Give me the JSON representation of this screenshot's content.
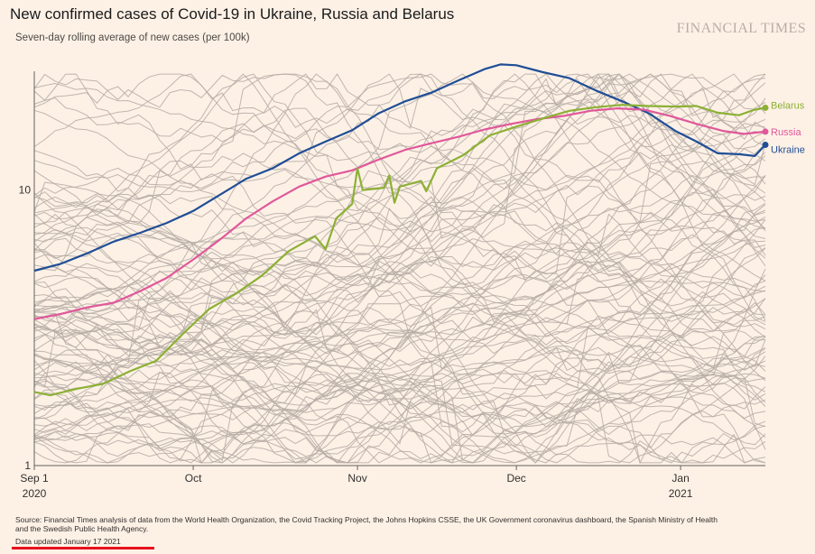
{
  "header": {
    "title": "New confirmed cases of Covid-19 in Ukraine, Russia and Belarus",
    "subtitle": "Seven-day rolling average of new cases (per 100k)",
    "brand": "FINANCIAL TIMES"
  },
  "footer": {
    "source": "Source: Financial Times analysis of data from the World Health Organization, the Covid Tracking Project, the Johns Hopkins CSSE, the UK Government coronavirus dashboard, the Spanish Ministry of Health and the Swedish Public Health Agency.",
    "updated": "Data updated January 17 2021"
  },
  "colors": {
    "background": "#fdf1e6",
    "other_countries": "#b5aca5",
    "ukraine": "#1f4e96",
    "russia": "#e0589a",
    "belarus": "#8cb034",
    "underline": "#e8111d"
  },
  "chart_data": {
    "type": "line",
    "y_scale": "log",
    "ylim": [
      1,
      27
    ],
    "y_ticks": [
      1,
      10
    ],
    "y_tick_labels": [
      "1",
      "10"
    ],
    "xlim": [
      "2020-09-01",
      "2021-01-17"
    ],
    "x_ticks": [
      {
        "date": "2020-09-01",
        "label": "Sep 1",
        "sublabel": "2020"
      },
      {
        "date": "2020-10-01",
        "label": "Oct",
        "sublabel": ""
      },
      {
        "date": "2020-11-01",
        "label": "Nov",
        "sublabel": ""
      },
      {
        "date": "2020-12-01",
        "label": "Dec",
        "sublabel": ""
      },
      {
        "date": "2021-01-01",
        "label": "Jan",
        "sublabel": "2021"
      }
    ],
    "grid": false,
    "legend": "direct labels at right end of lines",
    "series": [
      {
        "name": "Ukraine",
        "color": "#1f4e96",
        "points": [
          [
            "2020-09-01",
            5.1
          ],
          [
            "2020-09-06",
            5.4
          ],
          [
            "2020-09-11",
            5.9
          ],
          [
            "2020-09-16",
            6.5
          ],
          [
            "2020-09-21",
            7.0
          ],
          [
            "2020-09-26",
            7.6
          ],
          [
            "2020-10-01",
            8.4
          ],
          [
            "2020-10-06",
            9.6
          ],
          [
            "2020-10-11",
            11.0
          ],
          [
            "2020-10-16",
            12.0
          ],
          [
            "2020-10-21",
            13.6
          ],
          [
            "2020-10-26",
            15.0
          ],
          [
            "2020-10-31",
            16.5
          ],
          [
            "2020-11-05",
            19.0
          ],
          [
            "2020-11-10",
            21.0
          ],
          [
            "2020-11-15",
            22.6
          ],
          [
            "2020-11-20",
            25.0
          ],
          [
            "2020-11-25",
            27.5
          ],
          [
            "2020-11-28",
            28.6
          ],
          [
            "2020-12-01",
            28.4
          ],
          [
            "2020-12-06",
            26.8
          ],
          [
            "2020-12-11",
            25.5
          ],
          [
            "2020-12-16",
            23.0
          ],
          [
            "2020-12-21",
            21.0
          ],
          [
            "2020-12-26",
            19.0
          ],
          [
            "2020-12-31",
            16.4
          ],
          [
            "2021-01-04",
            15.0
          ],
          [
            "2021-01-08",
            13.6
          ],
          [
            "2021-01-12",
            13.5
          ],
          [
            "2021-01-15",
            13.3
          ],
          [
            "2021-01-17",
            14.6
          ]
        ]
      },
      {
        "name": "Russia",
        "color": "#e0589a",
        "points": [
          [
            "2020-09-01",
            3.4
          ],
          [
            "2020-09-06",
            3.55
          ],
          [
            "2020-09-11",
            3.75
          ],
          [
            "2020-09-16",
            3.9
          ],
          [
            "2020-09-21",
            4.3
          ],
          [
            "2020-09-26",
            4.8
          ],
          [
            "2020-10-01",
            5.6
          ],
          [
            "2020-10-06",
            6.6
          ],
          [
            "2020-10-11",
            7.9
          ],
          [
            "2020-10-16",
            9.1
          ],
          [
            "2020-10-21",
            10.3
          ],
          [
            "2020-10-26",
            11.2
          ],
          [
            "2020-10-31",
            11.8
          ],
          [
            "2020-11-05",
            12.9
          ],
          [
            "2020-11-10",
            14.0
          ],
          [
            "2020-11-15",
            14.8
          ],
          [
            "2020-11-20",
            15.6
          ],
          [
            "2020-11-25",
            16.6
          ],
          [
            "2020-11-30",
            17.4
          ],
          [
            "2020-12-05",
            18.1
          ],
          [
            "2020-12-10",
            18.6
          ],
          [
            "2020-12-15",
            19.4
          ],
          [
            "2020-12-20",
            19.8
          ],
          [
            "2020-12-25",
            19.6
          ],
          [
            "2020-12-30",
            18.6
          ],
          [
            "2021-01-04",
            17.4
          ],
          [
            "2021-01-09",
            16.4
          ],
          [
            "2021-01-13",
            16.0
          ],
          [
            "2021-01-17",
            16.3
          ]
        ]
      },
      {
        "name": "Belarus",
        "color": "#8cb034",
        "points": [
          [
            "2020-09-01",
            1.85
          ],
          [
            "2020-09-04",
            1.8
          ],
          [
            "2020-09-09",
            1.9
          ],
          [
            "2020-09-14",
            1.98
          ],
          [
            "2020-09-19",
            2.2
          ],
          [
            "2020-09-24",
            2.4
          ],
          [
            "2020-09-29",
            3.0
          ],
          [
            "2020-10-04",
            3.7
          ],
          [
            "2020-10-09",
            4.2
          ],
          [
            "2020-10-14",
            4.9
          ],
          [
            "2020-10-19",
            6.0
          ],
          [
            "2020-10-24",
            6.8
          ],
          [
            "2020-10-26",
            6.1
          ],
          [
            "2020-10-28",
            7.9
          ],
          [
            "2020-10-31",
            8.9
          ],
          [
            "2020-11-01",
            12.0
          ],
          [
            "2020-11-02",
            10.0
          ],
          [
            "2020-11-06",
            10.2
          ],
          [
            "2020-11-07",
            11.3
          ],
          [
            "2020-11-08",
            9.0
          ],
          [
            "2020-11-09",
            10.3
          ],
          [
            "2020-11-13",
            10.8
          ],
          [
            "2020-11-14",
            9.9
          ],
          [
            "2020-11-16",
            12.0
          ],
          [
            "2020-11-21",
            13.4
          ],
          [
            "2020-11-26",
            15.8
          ],
          [
            "2020-12-01",
            17.0
          ],
          [
            "2020-12-06",
            18.2
          ],
          [
            "2020-12-11",
            19.4
          ],
          [
            "2020-12-16",
            20.0
          ],
          [
            "2020-12-21",
            20.4
          ],
          [
            "2020-12-26",
            20.2
          ],
          [
            "2020-12-31",
            20.1
          ],
          [
            "2021-01-04",
            20.2
          ],
          [
            "2021-01-08",
            19.1
          ],
          [
            "2021-01-12",
            18.7
          ],
          [
            "2021-01-15",
            19.6
          ],
          [
            "2021-01-17",
            19.9
          ]
        ]
      }
    ]
  }
}
